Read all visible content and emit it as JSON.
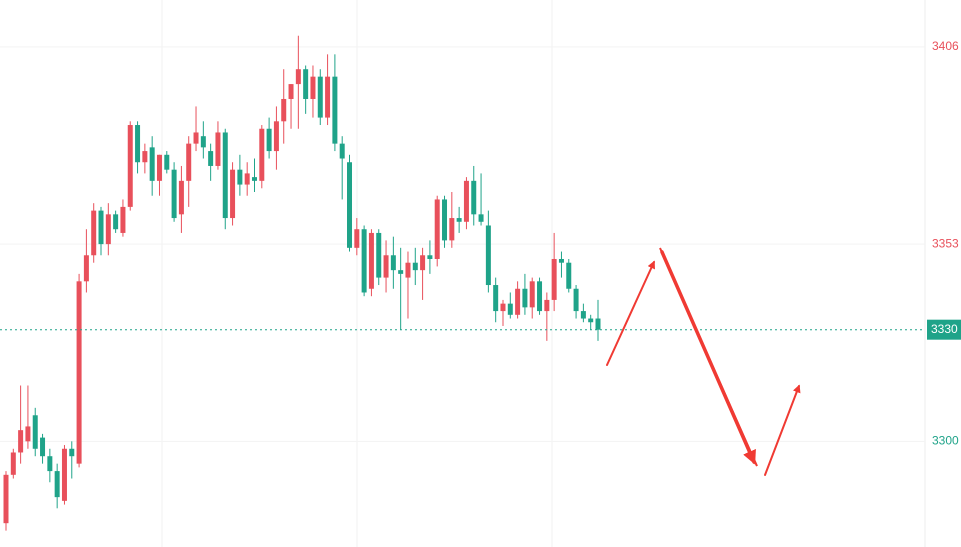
{
  "chart_data": {
    "type": "candlestick",
    "open": [
      3278,
      3291,
      3297,
      3300,
      3307,
      3301,
      3296,
      3292,
      3284,
      3298,
      3294,
      3343,
      3350,
      3362,
      3353,
      3361,
      3356,
      3363,
      3385,
      3375,
      3379,
      3370,
      3377,
      3373,
      3361,
      3370,
      3380,
      3382,
      3378,
      3374,
      3383,
      3360,
      3373,
      3369,
      3371,
      3370,
      3384,
      3378,
      3386,
      3392,
      3396,
      3400,
      3392,
      3398,
      3387,
      3398,
      3380,
      3375,
      3352,
      3357,
      3341,
      3356,
      3344,
      3350,
      3346,
      3344,
      3348,
      3346,
      3350,
      3349,
      3365,
      3354,
      3360,
      3359,
      3370,
      3361,
      3358,
      3342,
      3335,
      3337,
      3334,
      3341,
      3336,
      3343,
      3335,
      3338,
      3349,
      3348,
      3341,
      3335,
      3333,
      3333
    ],
    "high": [
      3292,
      3298,
      3315,
      3315,
      3309,
      3302,
      3298,
      3294,
      3299,
      3300,
      3345,
      3357,
      3364,
      3363,
      3364,
      3362,
      3365,
      3386,
      3386,
      3380,
      3382,
      3377,
      3378,
      3375,
      3374,
      3382,
      3390,
      3386,
      3380,
      3386,
      3384,
      3375,
      3377,
      3375,
      3376,
      3385,
      3387,
      3390,
      3400,
      3396,
      3409,
      3401,
      3401,
      3400,
      3404,
      3404,
      3382,
      3377,
      3360,
      3358,
      3357,
      3357,
      3354,
      3355,
      3352,
      3351,
      3352,
      3352,
      3354,
      3366,
      3366,
      3367,
      3363,
      3371,
      3374,
      3372,
      3362,
      3344,
      3338,
      3340,
      3343,
      3345,
      3344,
      3344,
      3340,
      3356,
      3351,
      3349,
      3342,
      3337,
      3334,
      3338
    ],
    "low": [
      3276,
      3290,
      3294,
      3298,
      3296,
      3294,
      3289,
      3282,
      3283,
      3290,
      3293,
      3340,
      3348,
      3350,
      3350,
      3356,
      3355,
      3362,
      3372,
      3372,
      3366,
      3366,
      3372,
      3359,
      3356,
      3363,
      3378,
      3376,
      3370,
      3373,
      3357,
      3358,
      3366,
      3366,
      3367,
      3368,
      3376,
      3373,
      3380,
      3384,
      3384,
      3388,
      3387,
      3385,
      3385,
      3378,
      3365,
      3351,
      3350,
      3339,
      3339,
      3342,
      3340,
      3341,
      3330,
      3333,
      3342,
      3338,
      3345,
      3347,
      3352,
      3352,
      3356,
      3357,
      3358,
      3358,
      3340,
      3332,
      3331,
      3333,
      3333,
      3334,
      3333,
      3334,
      3327,
      3335,
      3344,
      3340,
      3333,
      3332,
      3330,
      3327
    ],
    "close": [
      3291,
      3297,
      3303,
      3304,
      3298,
      3296,
      3292,
      3285,
      3298,
      3296,
      3343,
      3350,
      3362,
      3353,
      3361,
      3357,
      3363,
      3385,
      3375,
      3378,
      3370,
      3377,
      3373,
      3360,
      3370,
      3380,
      3383,
      3379,
      3374,
      3383,
      3360,
      3373,
      3369,
      3372,
      3370,
      3384,
      3378,
      3386,
      3392,
      3396,
      3400,
      3392,
      3398,
      3387,
      3398,
      3380,
      3376,
      3352,
      3357,
      3340,
      3356,
      3344,
      3350,
      3346,
      3345,
      3348,
      3346,
      3350,
      3349,
      3365,
      3354,
      3360,
      3359,
      3370,
      3361,
      3359,
      3342,
      3335,
      3337,
      3334,
      3341,
      3336,
      3343,
      3335,
      3338,
      3349,
      3348,
      3341,
      3335,
      3333,
      3332,
      3330
    ],
    "up_color": "#e8505b",
    "down_color": "#1fa389",
    "ylim": [
      3271.6,
      3418.6
    ],
    "yticks": [
      3300,
      3353,
      3406
    ],
    "grid": true,
    "last_price": 3330
  }
}
